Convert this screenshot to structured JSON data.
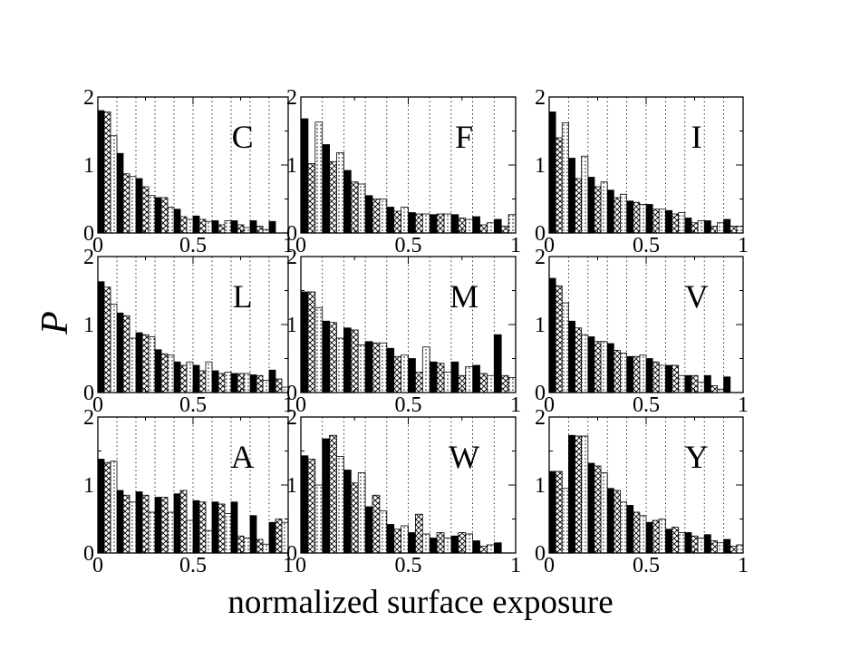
{
  "chart_data": {
    "type": "bar",
    "layout": "3x3 grid of histograms",
    "xlabel": "normalized surface exposure",
    "ylabel": "P",
    "xlim": [
      0,
      1
    ],
    "ylim": [
      0,
      2
    ],
    "x_tick_labels": [
      "0",
      "0.5",
      "1"
    ],
    "y_tick_labels": [
      "0",
      "1",
      "2"
    ],
    "grid": "vertical dotted lines every 0.1",
    "bin_width": 0.1,
    "bin_starts": [
      0,
      0.1,
      0.2,
      0.3,
      0.4,
      0.5,
      0.6,
      0.7,
      0.8,
      0.9
    ],
    "series_order": [
      "solid",
      "crosshatch",
      "dotted"
    ],
    "series_styles": {
      "solid": "#000000",
      "crosshatch": "#ffffff",
      "dotted": "#ffffff"
    },
    "panels": [
      {
        "label": "C",
        "series": [
          {
            "name": "solid",
            "values": [
              1.8,
              1.17,
              0.8,
              0.52,
              0.35,
              0.25,
              0.18,
              0.18,
              0.18,
              0.17
            ]
          },
          {
            "name": "crosshatch",
            "values": [
              1.78,
              0.87,
              0.68,
              0.52,
              0.24,
              0.2,
              0.12,
              0.12,
              0.1,
              0.0
            ]
          },
          {
            "name": "dotted",
            "values": [
              1.43,
              0.83,
              0.55,
              0.38,
              0.2,
              0.17,
              0.18,
              0.08,
              0.05,
              0.0
            ]
          }
        ]
      },
      {
        "label": "F",
        "series": [
          {
            "name": "solid",
            "values": [
              1.68,
              1.3,
              0.92,
              0.55,
              0.38,
              0.3,
              0.27,
              0.27,
              0.24,
              0.2
            ]
          },
          {
            "name": "crosshatch",
            "values": [
              1.02,
              1.05,
              0.75,
              0.5,
              0.32,
              0.28,
              0.28,
              0.22,
              0.12,
              0.1
            ]
          },
          {
            "name": "dotted",
            "values": [
              1.63,
              1.18,
              0.72,
              0.5,
              0.38,
              0.28,
              0.28,
              0.2,
              0.15,
              0.27
            ]
          }
        ]
      },
      {
        "label": "I",
        "series": [
          {
            "name": "solid",
            "values": [
              1.78,
              1.1,
              0.82,
              0.63,
              0.47,
              0.42,
              0.33,
              0.22,
              0.18,
              0.2
            ]
          },
          {
            "name": "crosshatch",
            "values": [
              1.4,
              0.8,
              0.68,
              0.52,
              0.45,
              0.35,
              0.28,
              0.15,
              0.1,
              0.1
            ]
          },
          {
            "name": "dotted",
            "values": [
              1.62,
              1.13,
              0.75,
              0.57,
              0.42,
              0.35,
              0.3,
              0.18,
              0.15,
              0.1
            ]
          }
        ]
      },
      {
        "label": "L",
        "series": [
          {
            "name": "solid",
            "values": [
              1.63,
              1.17,
              0.88,
              0.63,
              0.45,
              0.4,
              0.32,
              0.28,
              0.26,
              0.33
            ]
          },
          {
            "name": "crosshatch",
            "values": [
              1.55,
              1.13,
              0.85,
              0.57,
              0.4,
              0.32,
              0.28,
              0.28,
              0.25,
              0.2
            ]
          },
          {
            "name": "dotted",
            "values": [
              1.3,
              0.8,
              0.82,
              0.55,
              0.45,
              0.45,
              0.3,
              0.28,
              0.18,
              0.08
            ]
          }
        ]
      },
      {
        "label": "M",
        "series": [
          {
            "name": "solid",
            "values": [
              1.48,
              1.05,
              0.95,
              0.75,
              0.65,
              0.5,
              0.45,
              0.45,
              0.4,
              0.85
            ]
          },
          {
            "name": "crosshatch",
            "values": [
              1.48,
              1.03,
              0.92,
              0.73,
              0.53,
              0.3,
              0.43,
              0.25,
              0.28,
              0.25
            ]
          },
          {
            "name": "dotted",
            "values": [
              1.25,
              0.8,
              0.7,
              0.73,
              0.55,
              0.67,
              0.3,
              0.38,
              0.25,
              0.22
            ]
          }
        ]
      },
      {
        "label": "V",
        "series": [
          {
            "name": "solid",
            "values": [
              1.68,
              1.05,
              0.82,
              0.72,
              0.53,
              0.5,
              0.4,
              0.25,
              0.25,
              0.23
            ]
          },
          {
            "name": "crosshatch",
            "values": [
              1.57,
              0.95,
              0.75,
              0.62,
              0.53,
              0.45,
              0.4,
              0.25,
              0.1,
              0.0
            ]
          },
          {
            "name": "dotted",
            "values": [
              1.32,
              0.85,
              0.75,
              0.58,
              0.55,
              0.4,
              0.25,
              0.15,
              0.05,
              0.0
            ]
          }
        ]
      },
      {
        "label": "A",
        "series": [
          {
            "name": "solid",
            "values": [
              1.38,
              0.92,
              0.9,
              0.82,
              0.87,
              0.77,
              0.75,
              0.75,
              0.55,
              0.45
            ]
          },
          {
            "name": "crosshatch",
            "values": [
              1.33,
              0.85,
              0.85,
              0.82,
              0.92,
              0.75,
              0.72,
              0.25,
              0.2,
              0.5
            ]
          },
          {
            "name": "dotted",
            "values": [
              1.35,
              0.75,
              0.6,
              0.6,
              0.48,
              0.33,
              0.58,
              0.22,
              0.13,
              0.45
            ]
          }
        ]
      },
      {
        "label": "W",
        "series": [
          {
            "name": "solid",
            "values": [
              1.43,
              1.68,
              1.22,
              0.68,
              0.42,
              0.3,
              0.22,
              0.25,
              0.18,
              0.15
            ]
          },
          {
            "name": "crosshatch",
            "values": [
              1.38,
              1.73,
              1.03,
              0.85,
              0.35,
              0.57,
              0.3,
              0.3,
              0.1,
              0.0
            ]
          },
          {
            "name": "dotted",
            "values": [
              1.0,
              1.42,
              1.18,
              0.62,
              0.4,
              0.28,
              0.22,
              0.28,
              0.12,
              0.0
            ]
          }
        ]
      },
      {
        "label": "Y",
        "series": [
          {
            "name": "solid",
            "values": [
              1.2,
              1.73,
              1.32,
              0.95,
              0.7,
              0.45,
              0.35,
              0.3,
              0.27,
              0.2
            ]
          },
          {
            "name": "crosshatch",
            "values": [
              1.2,
              1.72,
              1.28,
              0.92,
              0.6,
              0.48,
              0.38,
              0.25,
              0.18,
              0.1
            ]
          },
          {
            "name": "dotted",
            "values": [
              0.95,
              1.72,
              1.18,
              0.75,
              0.55,
              0.5,
              0.3,
              0.22,
              0.15,
              0.12
            ]
          }
        ]
      }
    ]
  }
}
